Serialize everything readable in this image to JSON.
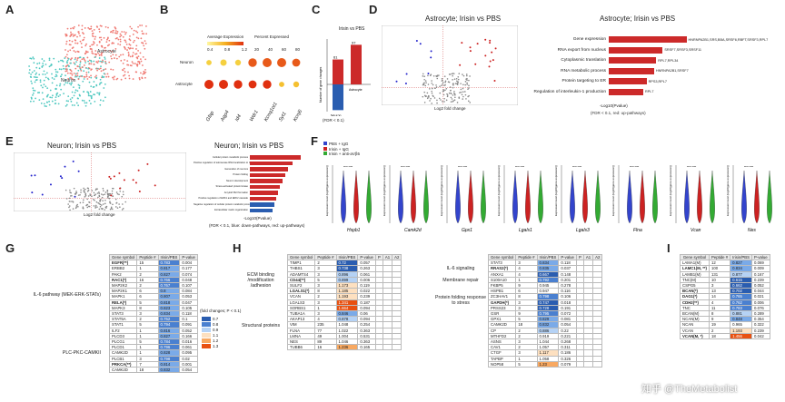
{
  "panels": {
    "a": "A",
    "b": "B",
    "c": "C",
    "d": "D",
    "e": "E",
    "f": "F",
    "g": "G",
    "h": "H",
    "i": "I"
  },
  "a": {
    "clusters": [
      "Astrocyte",
      "Neuron"
    ]
  },
  "b": {
    "legend_avg": "Average Expression",
    "legend_pct": "Percent Expressed",
    "avg_ticks": [
      "0.4",
      "0.8",
      "1.2"
    ],
    "pct_ticks": [
      "20",
      "40",
      "60",
      "80"
    ],
    "rows": [
      "Neuron",
      "Astrocyte"
    ],
    "genes": [
      "Gfap",
      "Aqp4",
      "Id4",
      "Wdr1",
      "Kcnq1ot1",
      "Syt1",
      "Kcnj6"
    ]
  },
  "c": {
    "title": "Irisin vs PBS",
    "ylabel": "Number of gene changes",
    "footnote": "(FDR < 0.1)",
    "categories": [
      "Neuron",
      "Astrocyte"
    ],
    "up": [
      61,
      97
    ],
    "down": [
      -63,
      0
    ]
  },
  "d": {
    "volcano_title": "Astrocyte; Irisin vs PBS",
    "xlabel": "Log2 fold change",
    "bar_title": "Astrocyte; Irisin vs PBS",
    "terms": [
      "Gene expression",
      "RNA export from nucleus",
      "Cytoplasmic translation",
      "RNA metabolic process",
      "Protein targeting to ER",
      "Regulation of interleukin-1 production"
    ],
    "bar_values": [
      7.2,
      5.0,
      4.4,
      4.2,
      3.5,
      3.2
    ],
    "genes": [
      "HNRNPA2B1,SRS,BBA,SRSF6,RBFT,SRSF3,RPL7",
      "SRSF7,SRSF3,SRSF11",
      "RPL7,RPL34",
      "HNRNPA2B1,SRSF7",
      "RPS3,RPL7",
      "RPL7"
    ],
    "xaxis": "-Log10(Pvalue)",
    "legend": "(FDR < 0.1, red: up-pathways)"
  },
  "e": {
    "volcano_title": "Neuron; Irisin vs PBS",
    "xlabel": "Log2 fold change",
    "bar_title": "Neuron; Irisin vs PBS",
    "terms": [
      "Cellular protein metabolic process",
      "Positive regulation of telomerase RNA localization to Cajal body",
      "Generation of neurons",
      "Protein folding",
      "Neuron development",
      "Stress-activated protein kinase",
      "Amyloid fibril formation",
      "Positive regulation of ERK1 and ERK2 cascade",
      "Negative regulation of cellular protein metabolic process",
      "Extracellular matrix organization"
    ],
    "bar_values": [
      9.0,
      7.5,
      6.8,
      6.3,
      5.8,
      5.4,
      5.0,
      4.7,
      4.4,
      4.0
    ],
    "legend": "(FDR < 0.1, blue: down-pathways, red: up-pathways)",
    "xaxis": "-Log10(Pvalue)"
  },
  "f": {
    "legend": [
      "PBS + IgG",
      "Irisin + IgG",
      "Irisin + anti-aVβ5"
    ],
    "legend_colors": [
      "#3344cc",
      "#cc2222",
      "#33aa33"
    ],
    "ylabel": "Expression level (log10(gene expression))",
    "genes": [
      "Hspb1",
      "Camk2d",
      "Gpx1",
      "Lgals1",
      "Lgals3",
      "Flna",
      "Vcan",
      "Nes"
    ],
    "sig": "****"
  },
  "g": {
    "headers": [
      "Gene symbol",
      "Peptide #",
      "Irisin/PBS",
      "P-value"
    ],
    "group1": "IL-6 pathway (MEK-ERK-STATs)",
    "group2": "PLC-PKC-CAMKII",
    "legend_title": "(fold changes; P < 0.1)",
    "legend_vals": [
      "0.7",
      "0.8",
      "0.9",
      "1.1",
      "1.2",
      "1.3"
    ],
    "rows": [
      [
        "EGFR(**)",
        "15",
        "0.783",
        "0.004"
      ],
      [
        "ERBB2",
        "1",
        "0.817",
        "0.177"
      ],
      [
        "PAK2",
        "2",
        "0.827",
        "0.074"
      ],
      [
        "RAC1(*)",
        "16",
        "0.766",
        "0.048"
      ],
      [
        "MAP2K2",
        "2",
        "0.767",
        "0.107"
      ],
      [
        "MAP2K1",
        "6",
        "0.8",
        "0.084"
      ],
      [
        "MAPK1",
        "6",
        "0.807",
        "0.053"
      ],
      [
        "RELA(*)",
        "5",
        "0.818",
        "0.047"
      ],
      [
        "MAPK3",
        "8",
        "0.823",
        "0.105"
      ],
      [
        "STAT3",
        "3",
        "0.834",
        "0.118"
      ],
      [
        "STAT5A",
        "2",
        "0.752",
        "0.1"
      ],
      [
        "STAT1",
        "5",
        "0.794",
        "0.091"
      ],
      [
        "ILF2",
        "1",
        "0.816",
        "0.052"
      ],
      [
        "PLCD3",
        "1",
        "0.827",
        "0.166"
      ],
      [
        "PLCG1",
        "5",
        "0.784",
        "0.016"
      ],
      [
        "PLCD1",
        "1",
        "0.796",
        "0.061"
      ],
      [
        "CAMK2D",
        "1",
        "0.828",
        "0.095"
      ],
      [
        "PLCB1",
        "3",
        "0.798",
        "0.02"
      ],
      [
        "PRKCA(**)",
        "7",
        "0.814",
        "0.001"
      ],
      [
        "CAMK2D",
        "18",
        "0.832",
        "0.054"
      ]
    ]
  },
  "h": {
    "headers": [
      "Gene symbol",
      "Peptide #",
      "Irisin/PBS",
      "P-value",
      "P",
      "A1",
      "A2"
    ],
    "group1": "ECM binding /modification /adhesion",
    "group2": "Structural proteins",
    "rows": [
      [
        "TIMP1",
        "2",
        "0.72",
        "0.057"
      ],
      [
        "THBS1",
        "3",
        "0.738",
        "0.263"
      ],
      [
        "ADAMTS4",
        "3",
        "0.896",
        "0.061"
      ],
      [
        "CD44(**)",
        "5",
        "0.899",
        "0.006"
      ],
      [
        "SULF2",
        "3",
        "1.173",
        "0.119"
      ],
      [
        "LGALS1(*)",
        "8",
        "1.185",
        "0.022"
      ],
      [
        "VCAN",
        "2",
        "1.193",
        "0.239"
      ],
      [
        "LGALS3",
        "3",
        "1.341",
        "0.187"
      ],
      [
        "SORBS1",
        "1",
        "1.664",
        "0.094"
      ],
      [
        "TUBA1A",
        "3",
        "0.846",
        "0.06"
      ],
      [
        "AKAP13",
        "4",
        "0.878",
        "0.094"
      ],
      [
        "VIM",
        "235",
        "1.048",
        "0.254"
      ],
      [
        "FLNA",
        "77",
        "1.022",
        "0.363"
      ],
      [
        "LMNA",
        "49",
        "1.004",
        "0.531"
      ],
      [
        "NES",
        "89",
        "1.046",
        "0.363"
      ],
      [
        "TUBB6",
        "16",
        "1.236",
        "0.165"
      ]
    ],
    "group3": "IL-6 signaling",
    "group4": "Membrane repair",
    "group5": "Protein folding response to stress",
    "rows2": [
      [
        "STAT3",
        "3",
        "0.834",
        "0.118"
      ],
      [
        "RRAS2(*)",
        "4",
        "0.835",
        "0.037"
      ],
      [
        "ANXA1",
        "4",
        "0.667",
        "0.148"
      ],
      [
        "S100A10",
        "1",
        "0.792",
        "0.201"
      ],
      [
        "FKBP5",
        "9",
        "0.945",
        "0.278"
      ],
      [
        "HSPB1",
        "6",
        "0.947",
        "0.116"
      ],
      [
        "ZC3HAV1",
        "8",
        "0.798",
        "0.106"
      ],
      [
        "GAPDH(*)",
        "3",
        "0.747",
        "0.018"
      ],
      [
        "PRSS23",
        "3",
        "0.728",
        "0.191"
      ],
      [
        "GSR",
        "9",
        "0.795",
        "0.072"
      ],
      [
        "GPX1",
        "5",
        "0.829",
        "0.081"
      ],
      [
        "CAMK2D",
        "18",
        "0.832",
        "0.054"
      ],
      [
        "CP",
        "2",
        "0.886",
        "0.22"
      ],
      [
        "MTHFD2",
        "2",
        "0.919",
        "0.221"
      ],
      [
        "ASNS",
        "3",
        "1.044",
        "0.268"
      ],
      [
        "CAV1",
        "2",
        "1.057",
        "0.311"
      ],
      [
        "CTGF",
        "3",
        "1.117",
        "0.186"
      ],
      [
        "TAPBP",
        "1",
        "1.058",
        "0.326"
      ],
      [
        "NOP58",
        "5",
        "1.23",
        "0.079"
      ]
    ]
  },
  "i": {
    "headers": [
      "Gene symbol",
      "Peptide #",
      "Irisin/PBS",
      "P-value"
    ],
    "rows": [
      [
        "LAMA1(M)",
        "12",
        "0.827",
        "0.069"
      ],
      [
        "LAMC1(M, **)",
        "100",
        "0.834",
        "0.009"
      ],
      [
        "LAMB1(M)",
        "131",
        "0.877",
        "0.167"
      ],
      [
        "TNC(M)",
        "10",
        "0.615",
        "0.239"
      ],
      [
        "CSPG5",
        "3",
        "0.662",
        "0.052"
      ],
      [
        "BCAN(*)",
        "13",
        "0.702",
        "0.044"
      ],
      [
        "DAG1(*)",
        "14",
        "0.765",
        "0.021"
      ],
      [
        "CDH2(**)",
        "4",
        "0.762",
        "0.006"
      ],
      [
        "TNC",
        "11",
        "0.783",
        "0.076"
      ],
      [
        "BCAN(M)",
        "8",
        "0.881",
        "0.289"
      ],
      [
        "NCAN(M)",
        "9",
        "0.848",
        "0.354"
      ],
      [
        "NCAN",
        "19",
        "0.965",
        "0.322"
      ],
      [
        "VCAN",
        "2",
        "1.193",
        "0.239"
      ],
      [
        "VCAN(M, *)",
        "18",
        "1.456",
        "0.042"
      ]
    ]
  },
  "watermark": "知乎 @TheMetabolist",
  "colors": {
    "teal": "#4fc8c0",
    "salmon": "#f07b74",
    "blue": "#2a5db0",
    "red": "#cc2a2a",
    "orange": "#f08030",
    "lightblue": "#9ec5f0"
  }
}
